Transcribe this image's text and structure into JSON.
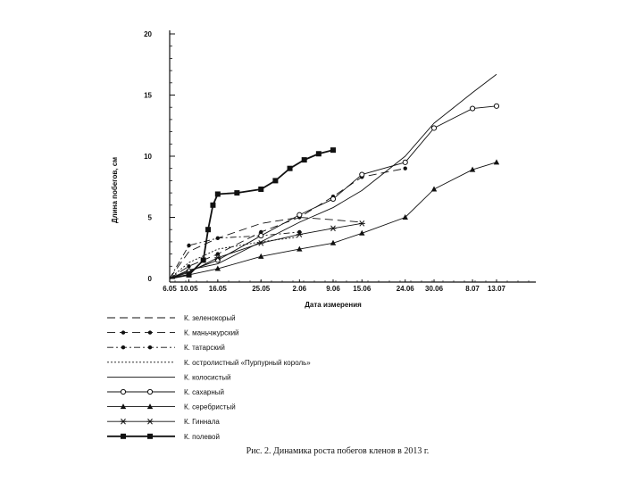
{
  "chart_data": {
    "type": "line",
    "title": "",
    "xlabel": "Дата измерения",
    "ylabel": "Длина побегов, см",
    "ylim": [
      0,
      20
    ],
    "yticks": [
      0,
      5,
      10,
      15,
      20
    ],
    "categories": [
      "6.05",
      "10.05",
      "16.05",
      "25.05",
      "2.06",
      "9.06",
      "15.06",
      "24.06",
      "30.06",
      "8.07",
      "13.07"
    ],
    "grid": false,
    "legend_position": "bottom",
    "series": [
      {
        "name": "К. зеленокорый",
        "style": "dash",
        "marker": "none",
        "x": [
          "6.05",
          "10.05",
          "16.05",
          "25.05",
          "2.06",
          "9.06",
          "15.06"
        ],
        "values": [
          0,
          2.2,
          3.3,
          4.5,
          5.0,
          4.8,
          4.6
        ]
      },
      {
        "name": "К. маньчжурский",
        "style": "dash",
        "marker": "dot",
        "x": [
          "6.05",
          "10.05",
          "16.05",
          "25.05",
          "2.06",
          "9.06",
          "15.06",
          "24.06"
        ],
        "values": [
          0,
          1.0,
          2.0,
          3.8,
          5.0,
          6.7,
          8.3,
          9.0
        ]
      },
      {
        "name": "К. татарский",
        "style": "dashdot",
        "marker": "dot",
        "x": [
          "6.05",
          "10.05",
          "16.05",
          "25.05",
          "2.06"
        ],
        "values": [
          0,
          2.7,
          3.3,
          3.5,
          3.8
        ]
      },
      {
        "name": "К. остролистный «Пурпурный король»",
        "style": "dotted",
        "marker": "none",
        "x": [
          "6.05",
          "10.05",
          "16.05",
          "25.05",
          "2.06"
        ],
        "values": [
          0,
          1.3,
          2.4,
          3.0,
          3.4
        ]
      },
      {
        "name": "К. колосистый",
        "style": "solid",
        "marker": "none",
        "x": [
          "6.05",
          "10.05",
          "16.05",
          "25.05",
          "2.06",
          "9.06",
          "15.06",
          "24.06",
          "30.06",
          "8.07",
          "13.07"
        ],
        "values": [
          0,
          0.7,
          1.2,
          3.0,
          4.6,
          5.8,
          7.2,
          10.0,
          12.7,
          15.2,
          16.7
        ]
      },
      {
        "name": "К. сахарный",
        "style": "solid",
        "marker": "circle",
        "x": [
          "6.05",
          "10.05",
          "16.05",
          "25.05",
          "2.06",
          "9.06",
          "15.06",
          "24.06",
          "30.06",
          "8.07",
          "13.07"
        ],
        "values": [
          0,
          0.6,
          1.5,
          3.5,
          5.2,
          6.5,
          8.5,
          9.5,
          12.3,
          13.9,
          14.1
        ]
      },
      {
        "name": "К. серебристый",
        "style": "solid",
        "marker": "triangle",
        "x": [
          "6.05",
          "10.05",
          "16.05",
          "25.05",
          "2.06",
          "9.06",
          "15.06",
          "24.06",
          "30.06",
          "8.07",
          "13.07"
        ],
        "values": [
          0,
          0.3,
          0.8,
          1.8,
          2.4,
          2.9,
          3.7,
          5.0,
          7.3,
          8.9,
          9.5
        ]
      },
      {
        "name": "К. Гиннала",
        "style": "solid",
        "marker": "asterisk",
        "x": [
          "6.05",
          "10.05",
          "16.05",
          "25.05",
          "2.06",
          "9.06",
          "15.06"
        ],
        "values": [
          0,
          0.5,
          1.7,
          2.9,
          3.6,
          4.1,
          4.5
        ]
      },
      {
        "name": "К. полевой",
        "style": "bold",
        "marker": "square",
        "x": [
          "6.05",
          "10.05",
          "13.05",
          "14.05",
          "15.05",
          "16.05",
          "20.05",
          "25.05",
          "28.05",
          "31.05",
          "3.06",
          "6.06",
          "9.06"
        ],
        "values": [
          0,
          0.3,
          1.5,
          4.0,
          6.0,
          6.9,
          7.0,
          7.3,
          8.0,
          9.0,
          9.7,
          10.2,
          10.5
        ]
      }
    ]
  },
  "caption": "Рис. 2. Динамика роста побегов кленов в 2013 г.",
  "colors": {
    "ink": "#111111",
    "background": "#ffffff"
  }
}
